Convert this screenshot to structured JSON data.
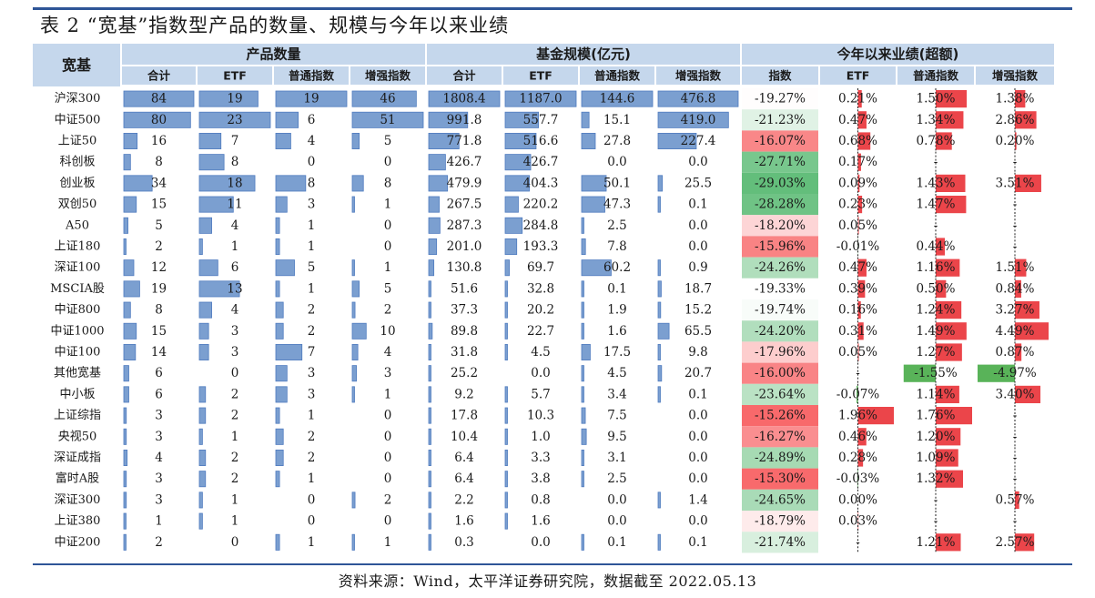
{
  "title": "表 2 “宽基”指数型产品的数量、规模与今年以来业绩",
  "source": "资料来源：Wind，太平洋证券研究院，数据截至 2022.05.13",
  "header": {
    "row_header": "宽基",
    "groups": [
      "产品数量",
      "基金规模(亿元)",
      "今年以来业绩(超额)"
    ],
    "sub": [
      "合计",
      "ETF",
      "普通指数",
      "增强指数",
      "合计",
      "ETF",
      "普通指数",
      "增强指数",
      "指数",
      "ETF",
      "普通指数",
      "增强指数"
    ]
  },
  "colors": {
    "rule": "#2e5597",
    "header_bg": "#c5d7ec",
    "bar_fill": "#7b9fd0",
    "bar_border": "#4f7bbf",
    "red": "#f8696b",
    "green": "#63be7b",
    "negbar": "#30a030",
    "posbar": "#e8242a"
  },
  "rows": [
    {
      "name": "沪深300",
      "count": [
        "84",
        "19",
        "19",
        "46"
      ],
      "scale": [
        "1808.4",
        "1187.0",
        "144.6",
        "476.8"
      ],
      "perf": [
        "-19.27%",
        "0.21%",
        "1.50%",
        "1.38%"
      ]
    },
    {
      "name": "中证500",
      "count": [
        "80",
        "23",
        "6",
        "51"
      ],
      "scale": [
        "991.8",
        "557.7",
        "15.1",
        "419.0"
      ],
      "perf": [
        "-21.23%",
        "0.47%",
        "1.34%",
        "2.86%"
      ]
    },
    {
      "name": "上证50",
      "count": [
        "16",
        "7",
        "4",
        "5"
      ],
      "scale": [
        "771.8",
        "516.6",
        "27.8",
        "227.4"
      ],
      "perf": [
        "-16.07%",
        "0.68%",
        "0.78%",
        "0.20%"
      ]
    },
    {
      "name": "科创板",
      "count": [
        "8",
        "8",
        "0",
        "0"
      ],
      "scale": [
        "426.7",
        "426.7",
        "0.0",
        "0.0"
      ],
      "perf": [
        "-27.71%",
        "0.17%",
        "-",
        "-"
      ]
    },
    {
      "name": "创业板",
      "count": [
        "34",
        "18",
        "8",
        "8"
      ],
      "scale": [
        "479.9",
        "404.3",
        "50.1",
        "25.5"
      ],
      "perf": [
        "-29.03%",
        "0.09%",
        "1.43%",
        "3.51%"
      ]
    },
    {
      "name": "双创50",
      "count": [
        "15",
        "11",
        "3",
        "1"
      ],
      "scale": [
        "267.5",
        "220.2",
        "47.3",
        "0.1"
      ],
      "perf": [
        "-28.28%",
        "0.23%",
        "1.47%",
        "-"
      ]
    },
    {
      "name": "A50",
      "count": [
        "5",
        "4",
        "1",
        "0"
      ],
      "scale": [
        "287.3",
        "284.8",
        "2.5",
        "0.0"
      ],
      "perf": [
        "-18.20%",
        "0.05%",
        "-",
        "-"
      ]
    },
    {
      "name": "上证180",
      "count": [
        "2",
        "1",
        "1",
        "0"
      ],
      "scale": [
        "201.0",
        "193.3",
        "7.8",
        "0.0"
      ],
      "perf": [
        "-15.96%",
        "-0.01%",
        "0.44%",
        "-"
      ]
    },
    {
      "name": "深证100",
      "count": [
        "12",
        "6",
        "5",
        "1"
      ],
      "scale": [
        "130.8",
        "69.7",
        "60.2",
        "0.9"
      ],
      "perf": [
        "-24.26%",
        "0.47%",
        "1.16%",
        "1.51%"
      ]
    },
    {
      "name": "MSCIA股",
      "count": [
        "19",
        "13",
        "1",
        "5"
      ],
      "scale": [
        "51.6",
        "32.8",
        "0.1",
        "18.7"
      ],
      "perf": [
        "-19.33%",
        "0.39%",
        "0.50%",
        "0.84%"
      ]
    },
    {
      "name": "中证800",
      "count": [
        "8",
        "4",
        "2",
        "2"
      ],
      "scale": [
        "37.3",
        "20.2",
        "1.9",
        "15.2"
      ],
      "perf": [
        "-19.74%",
        "0.16%",
        "1.24%",
        "3.27%"
      ]
    },
    {
      "name": "中证1000",
      "count": [
        "15",
        "3",
        "2",
        "10"
      ],
      "scale": [
        "89.8",
        "22.7",
        "1.6",
        "65.5"
      ],
      "perf": [
        "-24.20%",
        "0.31%",
        "1.49%",
        "4.49%"
      ]
    },
    {
      "name": "中证100",
      "count": [
        "14",
        "3",
        "7",
        "4"
      ],
      "scale": [
        "31.8",
        "4.5",
        "17.5",
        "9.8"
      ],
      "perf": [
        "-17.96%",
        "0.05%",
        "1.27%",
        "0.87%"
      ]
    },
    {
      "name": "其他宽基",
      "count": [
        "6",
        "0",
        "3",
        "3"
      ],
      "scale": [
        "25.2",
        "0.0",
        "4.5",
        "20.7"
      ],
      "perf": [
        "-16.00%",
        "-",
        "-1.55%",
        "-4.97%"
      ]
    },
    {
      "name": "中小板",
      "count": [
        "6",
        "2",
        "3",
        "1"
      ],
      "scale": [
        "9.2",
        "5.7",
        "3.4",
        "0.1"
      ],
      "perf": [
        "-23.64%",
        "-0.07%",
        "1.14%",
        "3.40%"
      ]
    },
    {
      "name": "上证综指",
      "count": [
        "3",
        "2",
        "1",
        "0"
      ],
      "scale": [
        "17.8",
        "10.3",
        "7.5",
        "0.0"
      ],
      "perf": [
        "-15.26%",
        "1.96%",
        "1.76%",
        "-"
      ]
    },
    {
      "name": "央视50",
      "count": [
        "3",
        "1",
        "2",
        "0"
      ],
      "scale": [
        "10.4",
        "1.0",
        "9.5",
        "0.0"
      ],
      "perf": [
        "-16.27%",
        "0.46%",
        "1.20%",
        "-"
      ]
    },
    {
      "name": "深证成指",
      "count": [
        "4",
        "2",
        "2",
        "0"
      ],
      "scale": [
        "6.4",
        "3.3",
        "3.1",
        "0.0"
      ],
      "perf": [
        "-24.89%",
        "0.28%",
        "1.09%",
        "-"
      ]
    },
    {
      "name": "富时A股",
      "count": [
        "3",
        "2",
        "1",
        "0"
      ],
      "scale": [
        "6.4",
        "3.8",
        "2.5",
        "0.0"
      ],
      "perf": [
        "-15.30%",
        "-0.03%",
        "1.32%",
        "-"
      ]
    },
    {
      "name": "深证300",
      "count": [
        "3",
        "1",
        "0",
        "2"
      ],
      "scale": [
        "2.2",
        "0.8",
        "0.0",
        "1.4"
      ],
      "perf": [
        "-24.65%",
        "0.00%",
        "-",
        "0.57%"
      ]
    },
    {
      "name": "上证380",
      "count": [
        "1",
        "1",
        "0",
        "0"
      ],
      "scale": [
        "1.6",
        "1.6",
        "0.0",
        "0.0"
      ],
      "perf": [
        "-18.79%",
        "0.03%",
        "-",
        "-"
      ]
    },
    {
      "name": "中证200",
      "count": [
        "2",
        "0",
        "1",
        "1"
      ],
      "scale": [
        "0.3",
        "0.0",
        "0.1",
        "0.1"
      ],
      "perf": [
        "-21.74%",
        "-",
        "1.21%",
        "2.57%"
      ]
    }
  ]
}
